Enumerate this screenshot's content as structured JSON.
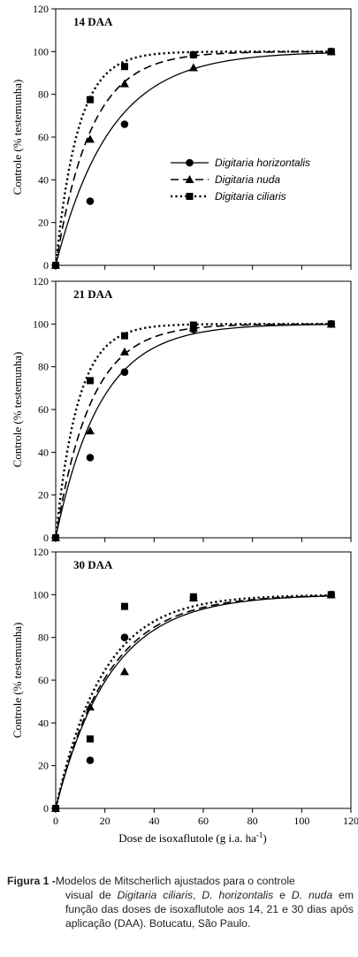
{
  "chart_data": [
    {
      "type": "scatter",
      "title": "14 DAA",
      "xlabel": "",
      "ylabel": "Controle (% testemunha)",
      "xlim": [
        0,
        120
      ],
      "ylim": [
        0,
        120
      ],
      "yticks": [
        0,
        20,
        40,
        60,
        80,
        100,
        120
      ],
      "xticks": [
        0,
        20,
        40,
        60,
        80,
        100,
        120
      ],
      "x_ticks_visible": false,
      "legend_position": "right-center",
      "grid": false,
      "series": [
        {
          "name": "Digitaria horizontalis",
          "marker": "circle",
          "line": "solid",
          "rate": 0.045,
          "x": [
            0,
            14,
            28,
            56,
            112
          ],
          "y": [
            0,
            30,
            66,
            98.5,
            100
          ]
        },
        {
          "name": "Digitaria nuda",
          "marker": "triangle",
          "line": "dashed",
          "rate": 0.07,
          "x": [
            0,
            14,
            28,
            56,
            112
          ],
          "y": [
            0,
            59,
            85,
            92.5,
            100
          ]
        },
        {
          "name": "Digitaria ciliaris",
          "marker": "square",
          "line": "dotted",
          "rate": 0.11,
          "x": [
            0,
            14,
            28,
            56,
            112
          ],
          "y": [
            0,
            77.5,
            93,
            98.5,
            100
          ]
        }
      ]
    },
    {
      "type": "scatter",
      "title": "21 DAA",
      "xlabel": "",
      "ylabel": "Controle (% testemunha)",
      "xlim": [
        0,
        120
      ],
      "ylim": [
        0,
        120
      ],
      "yticks": [
        0,
        20,
        40,
        60,
        80,
        100,
        120
      ],
      "xticks": [
        0,
        20,
        40,
        60,
        80,
        100,
        120
      ],
      "x_ticks_visible": false,
      "legend_position": "none",
      "grid": false,
      "series": [
        {
          "name": "Digitaria horizontalis",
          "marker": "circle",
          "line": "solid",
          "rate": 0.055,
          "x": [
            0,
            14,
            28,
            56,
            112
          ],
          "y": [
            0,
            37.5,
            77.5,
            97.5,
            100
          ]
        },
        {
          "name": "Digitaria nuda",
          "marker": "triangle",
          "line": "dashed",
          "rate": 0.07,
          "x": [
            0,
            14,
            28,
            56,
            112
          ],
          "y": [
            0,
            50,
            87,
            98,
            100
          ]
        },
        {
          "name": "Digitaria ciliaris",
          "marker": "square",
          "line": "dotted",
          "rate": 0.11,
          "x": [
            0,
            14,
            28,
            56,
            112
          ],
          "y": [
            0,
            73.5,
            94.5,
            99.5,
            100
          ]
        }
      ]
    },
    {
      "type": "scatter",
      "title": "30 DAA",
      "xlabel": "Dose de isoxaflutole (g i.a. ha",
      "xlabel_sup": "-1",
      "xlabel_tail": ")",
      "ylabel": "Controle (% testemunha)",
      "xlim": [
        0,
        120
      ],
      "ylim": [
        0,
        120
      ],
      "yticks": [
        0,
        20,
        40,
        60,
        80,
        100,
        120
      ],
      "xticks": [
        0,
        20,
        40,
        60,
        80,
        100,
        120
      ],
      "x_ticks_visible": true,
      "legend_position": "none",
      "grid": false,
      "series": [
        {
          "name": "Digitaria horizontalis",
          "marker": "circle",
          "line": "solid",
          "rate": 0.045,
          "x": [
            0,
            14,
            28,
            56,
            112
          ],
          "y": [
            0,
            22.5,
            80,
            98.5,
            100
          ]
        },
        {
          "name": "Digitaria nuda",
          "marker": "triangle",
          "line": "dashed",
          "rate": 0.047,
          "x": [
            0,
            14,
            28,
            56,
            112
          ],
          "y": [
            0,
            47.5,
            64,
            98.5,
            100
          ]
        },
        {
          "name": "Digitaria ciliaris",
          "marker": "square",
          "line": "dotted",
          "rate": 0.052,
          "x": [
            0,
            14,
            28,
            56,
            112
          ],
          "y": [
            0,
            32.5,
            94.5,
            99,
            100
          ]
        }
      ]
    }
  ],
  "caption": {
    "label": "Figura 1 -",
    "p1": " Modelos de Mitscherlich ajustados para o controle",
    "p2": "visual de ",
    "e1": "Digitaria ciliaris",
    "p3": ", ",
    "e2": "D. horizontalis",
    "p4": " e",
    "e3": "D. nuda",
    "p5": " em função das doses de isoxaflutole aos",
    "p6": "14, 21 e 30 dias após aplicação (DAA). Botucatu,",
    "p7": "São Paulo."
  }
}
